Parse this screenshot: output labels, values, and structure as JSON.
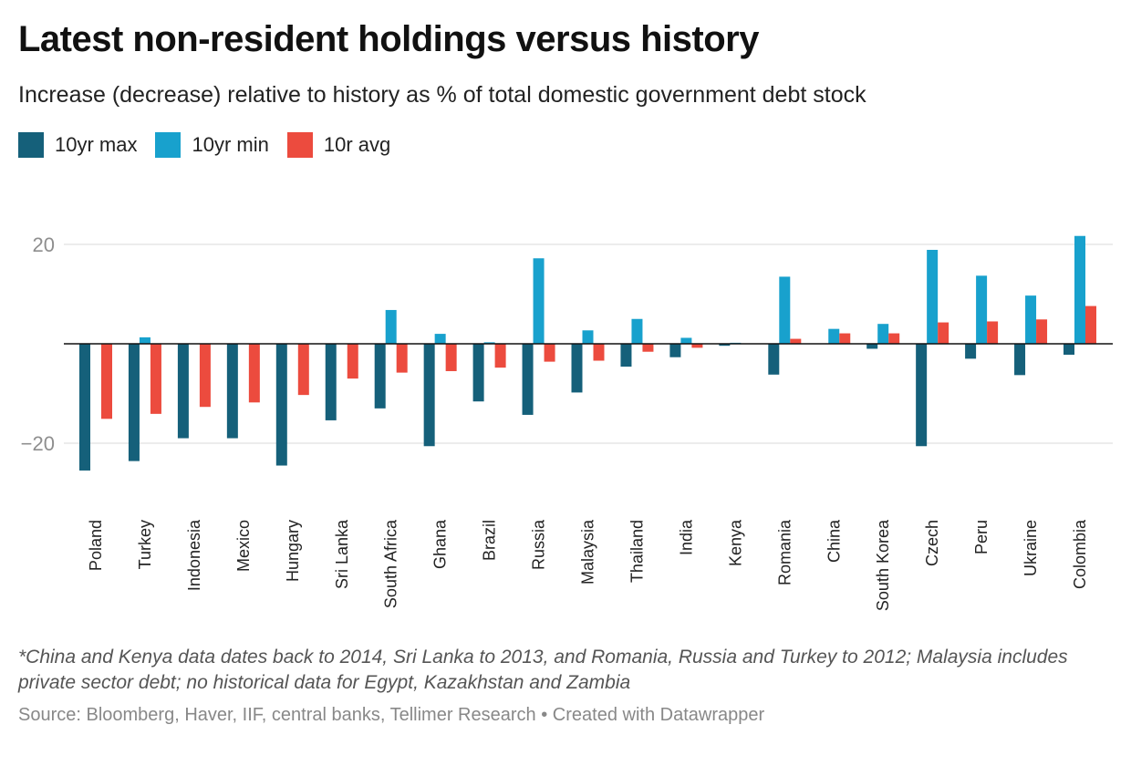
{
  "header": {
    "title": "Latest non-resident holdings versus history",
    "subtitle": "Increase (decrease) relative to history as % of total domestic government debt stock"
  },
  "legend": [
    {
      "label": "10yr max",
      "color": "#15607a"
    },
    {
      "label": "10yr min",
      "color": "#18a1cd"
    },
    {
      "label": "10r avg",
      "color": "#ec4b3e"
    }
  ],
  "footer": {
    "notes": "*China and Kenya data dates back to 2014, Sri Lanka to 2013, and Romania, Russia and Turkey to 2012; Malaysia includes private sector debt; no historical data for Egypt, Kazakhstan and Zambia",
    "source": "Source: Bloomberg, Haver, IIF, central banks, Tellimer Research",
    "credit": "Created with Datawrapper",
    "separator": "•"
  },
  "chart_data": {
    "type": "bar",
    "title": "Latest non-resident holdings versus history",
    "ylabel": "",
    "xlabel": "",
    "ylim": [
      -25,
      22
    ],
    "yticks": [
      20,
      -20
    ],
    "grid": true,
    "categories": [
      "Poland",
      "Turkey",
      "Indonesia",
      "Mexico",
      "Hungary",
      "Sri Lanka",
      "South Africa",
      "Ghana",
      "Brazil",
      "Russia",
      "Malaysia",
      "Thailand",
      "India",
      "Kenya",
      "Romania",
      "China",
      "South Korea",
      "Czech",
      "Peru",
      "Ukraine",
      "Colombia"
    ],
    "series": [
      {
        "name": "10yr max",
        "color": "#15607a",
        "values": [
          -25.5,
          -23.6,
          -19.0,
          -19.0,
          -24.5,
          -15.4,
          -13.0,
          -20.6,
          -11.6,
          -14.3,
          -9.8,
          -4.6,
          -2.7,
          -0.4,
          -6.2,
          0,
          -1.0,
          -20.6,
          -3.0,
          -6.3,
          -2.2
        ]
      },
      {
        "name": "10yr min",
        "color": "#18a1cd",
        "values": [
          0,
          1.3,
          0,
          0,
          0,
          0,
          6.8,
          2.0,
          0.3,
          17.2,
          2.7,
          5.0,
          1.2,
          0.2,
          13.5,
          3.0,
          4.0,
          18.9,
          13.7,
          9.7,
          21.7
        ]
      },
      {
        "name": "10r avg",
        "color": "#ec4b3e",
        "values": [
          -15.1,
          -14.1,
          -12.7,
          -11.8,
          -10.3,
          -7.0,
          -5.8,
          -5.5,
          -4.8,
          -3.6,
          -3.4,
          -1.6,
          -0.8,
          0,
          1.0,
          2.1,
          2.1,
          4.3,
          4.5,
          4.9,
          7.6
        ]
      }
    ]
  }
}
